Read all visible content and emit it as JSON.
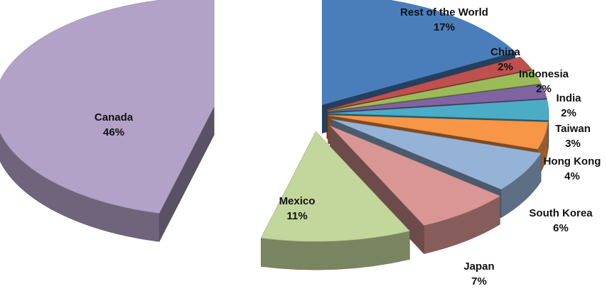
{
  "chart_data": {
    "type": "pie",
    "style": "exploded-3d",
    "title": "",
    "categories": [
      "Rest of the World",
      "China",
      "Indonesia",
      "India",
      "Taiwan",
      "Hong Kong",
      "South Korea",
      "Japan",
      "Mexico",
      "Canada"
    ],
    "values": [
      17,
      2,
      2,
      2,
      3,
      4,
      6,
      7,
      11,
      46
    ],
    "value_labels": [
      "17%",
      "2%",
      "2%",
      "2%",
      "3%",
      "4%",
      "6%",
      "7%",
      "11%",
      "46%"
    ],
    "colors": [
      "#4A7EBB",
      "#C0504D",
      "#9BBB59",
      "#8064A2",
      "#4BACC6",
      "#F79646",
      "#95B3D7",
      "#D99694",
      "#C3D69B",
      "#B3A2C7"
    ],
    "legend": "none"
  }
}
